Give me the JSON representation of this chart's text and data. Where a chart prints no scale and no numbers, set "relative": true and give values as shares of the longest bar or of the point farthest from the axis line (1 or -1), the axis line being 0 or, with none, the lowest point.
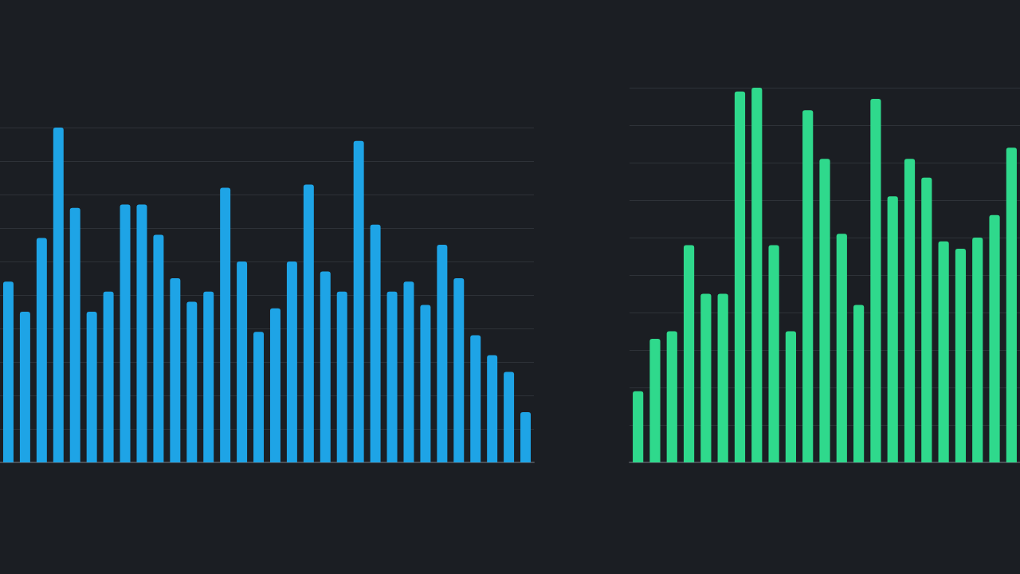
{
  "chart_data": [
    {
      "type": "bar",
      "relative": true,
      "grid": "y",
      "categories": [
        null,
        null,
        null,
        null,
        null,
        null,
        null,
        null,
        null,
        null,
        null,
        null,
        null,
        null,
        null,
        null,
        null,
        null,
        null,
        null,
        null,
        null,
        null,
        null,
        null,
        null,
        null,
        null,
        null,
        null,
        null,
        null
      ],
      "series": [
        {
          "color": "#1ea4e6",
          "values": [
            0.54,
            0.45,
            0.67,
            1,
            0.76,
            0.45,
            0.51,
            0.77,
            0.77,
            0.68,
            0.55,
            0.48,
            0.51,
            0.82,
            0.6,
            0.39,
            0.46,
            0.6,
            0.83,
            0.57,
            0.51,
            0.96,
            0.71,
            0.51,
            0.54,
            0.47,
            0.65,
            0.55,
            0.38,
            0.32,
            0.27,
            0.15
          ]
        }
      ]
    },
    {
      "type": "bar",
      "relative": true,
      "grid": "y",
      "categories": [
        null,
        null,
        null,
        null,
        null,
        null,
        null,
        null,
        null,
        null,
        null,
        null,
        null,
        null,
        null,
        null,
        null,
        null,
        null,
        null,
        null,
        null,
        null
      ],
      "series": [
        {
          "color": "#2fd98c",
          "values": [
            0.19,
            0.33,
            0.35,
            0.58,
            0.45,
            0.45,
            0.99,
            1,
            0.58,
            0.35,
            0.94,
            0.81,
            0.61,
            0.42,
            0.97,
            0.71,
            0.81,
            0.76,
            0.59,
            0.57,
            0.6,
            0.66,
            0.84
          ]
        }
      ]
    }
  ]
}
